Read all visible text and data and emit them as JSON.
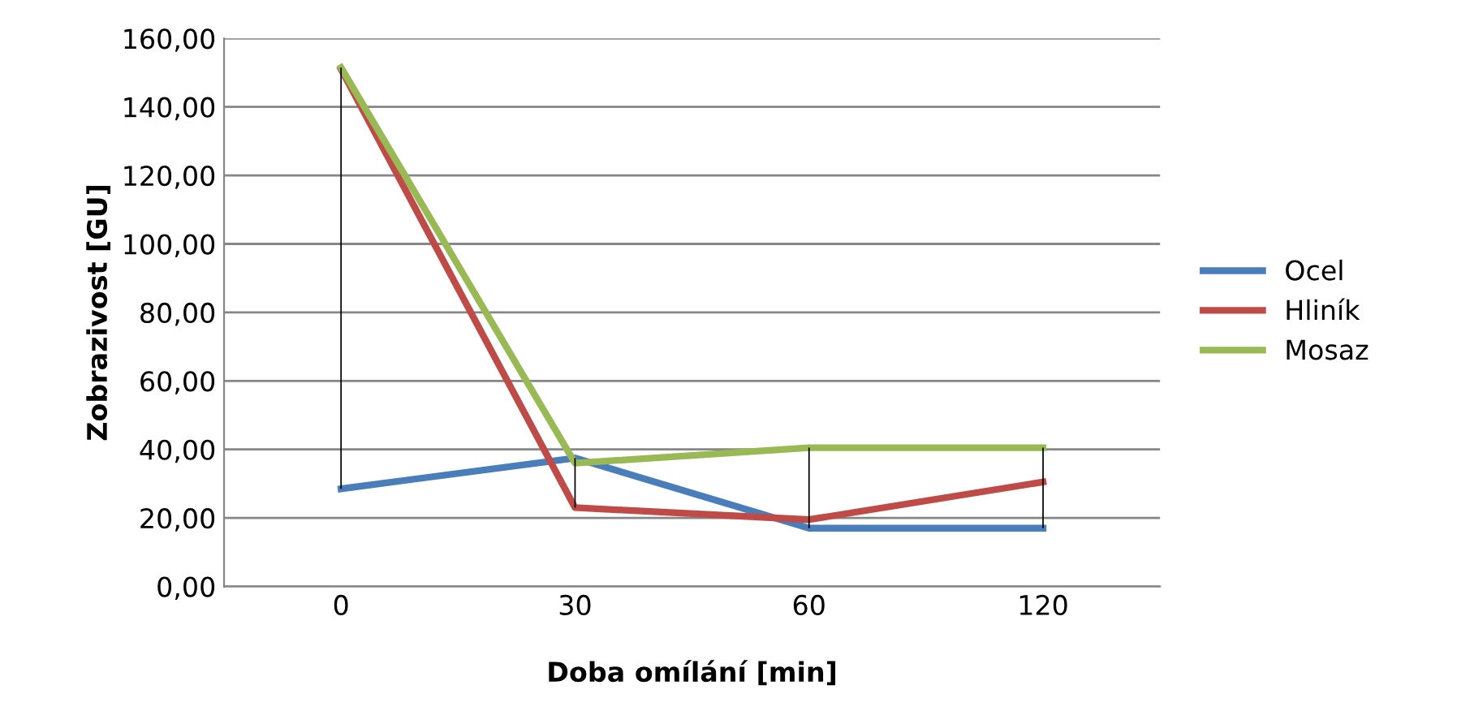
{
  "chart_data": {
    "type": "line",
    "xlabel": "Doba omílání [min]",
    "ylabel": "Zobrazivost [GU]",
    "categories": [
      "0",
      "30",
      "60",
      "120"
    ],
    "series": [
      {
        "name": "Ocel",
        "color": "#4a7ebb",
        "values": [
          28.5,
          37.5,
          17,
          17
        ]
      },
      {
        "name": "Hliník",
        "color": "#be4b48",
        "values": [
          151,
          23,
          19.5,
          30.5
        ]
      },
      {
        "name": "Mosaz",
        "color": "#98b954",
        "values": [
          151.5,
          36,
          40.5,
          40.5
        ]
      },
      {
        "type": "bar",
        "color": "#000000",
        "base": [
          28.5,
          23,
          17,
          17
        ],
        "values": [
          123,
          14.5,
          23.5,
          23.5
        ]
      }
    ],
    "ylim": [
      0,
      160
    ],
    "yticks": [
      {
        "value": 0,
        "label": "0,00"
      },
      {
        "value": 20,
        "label": "20,00"
      },
      {
        "value": 40,
        "label": "40,00"
      },
      {
        "value": 60,
        "label": "60,00"
      },
      {
        "value": 80,
        "label": "80,00"
      },
      {
        "value": 100,
        "label": "100,00"
      },
      {
        "value": 120,
        "label": "120,00"
      },
      {
        "value": 140,
        "label": "140,00"
      },
      {
        "value": 160,
        "label": "160,00"
      }
    ],
    "grid": "y",
    "legend": "right",
    "marker": "none",
    "line_style": "solid"
  }
}
